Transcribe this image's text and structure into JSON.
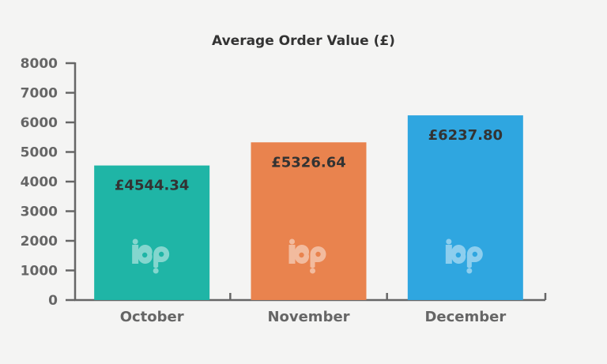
{
  "chart_data": {
    "type": "bar",
    "title": "Average Order Value (£)",
    "categories": [
      "October",
      "November",
      "December"
    ],
    "values": [
      4544.34,
      5326.64,
      6237.8
    ],
    "data_labels": [
      "£4544.34",
      "£5326.64",
      "£6237.80"
    ],
    "ylim": [
      0,
      8000
    ],
    "yticks": [
      "0",
      "1000",
      "2000",
      "3000",
      "4000",
      "5000",
      "6000",
      "7000",
      "8000"
    ],
    "bar_colors": [
      "#1fb5a6",
      "#e9834e",
      "#2fa6e0"
    ],
    "axis_color": "#666666",
    "grid": false,
    "legend": "none",
    "watermark_icon": "bp-logo-icon"
  }
}
